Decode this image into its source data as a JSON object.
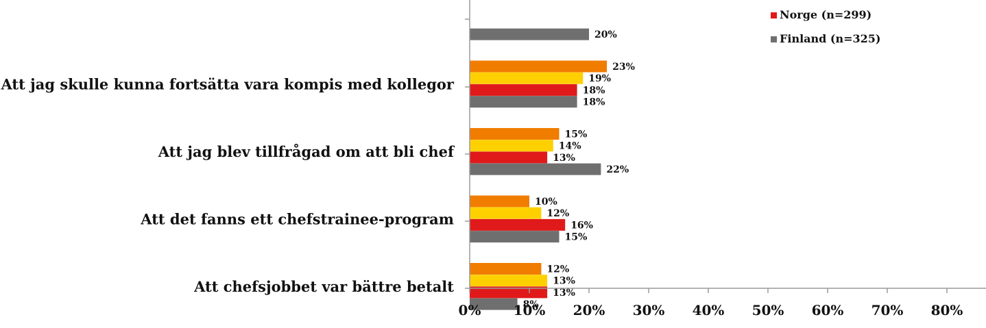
{
  "chart_data": {
    "type": "bar",
    "orientation": "horizontal",
    "categories": [
      "",
      "Att jag skulle kunna fortsätta vara kompis med kollegor",
      "Att jag blev tillfrågad om att bli chef",
      "Att det fanns ett chefstrainee-program",
      "Att chefsjobbet var bättre betalt"
    ],
    "series": [
      {
        "name": "",
        "color": "#f07c00",
        "values": [
          null,
          23,
          15,
          10,
          12
        ]
      },
      {
        "name": "",
        "color": "#ffd000",
        "values": [
          null,
          19,
          14,
          12,
          13
        ]
      },
      {
        "name": "Norge (n=299)",
        "color": "#e01a1a",
        "values": [
          null,
          18,
          13,
          16,
          13
        ]
      },
      {
        "name": "Finland (n=325)",
        "color": "#6f6f6f",
        "values": [
          20,
          18,
          22,
          15,
          8
        ]
      }
    ],
    "value_labels": [
      [
        null,
        "23%",
        "15%",
        "10%",
        "12%"
      ],
      [
        null,
        "19%",
        "14%",
        "12%",
        "13%"
      ],
      [
        null,
        "18%",
        "13%",
        "16%",
        "13%"
      ],
      [
        "20%",
        "18%",
        "22%",
        "15%",
        "8%"
      ]
    ],
    "xlim": [
      0,
      85
    ],
    "x_ticks": [
      "0%",
      "10%",
      "20%",
      "30%",
      "40%",
      "50%",
      "60%",
      "70%",
      "80%"
    ],
    "legend": {
      "position": "top-right"
    },
    "grid": false
  }
}
